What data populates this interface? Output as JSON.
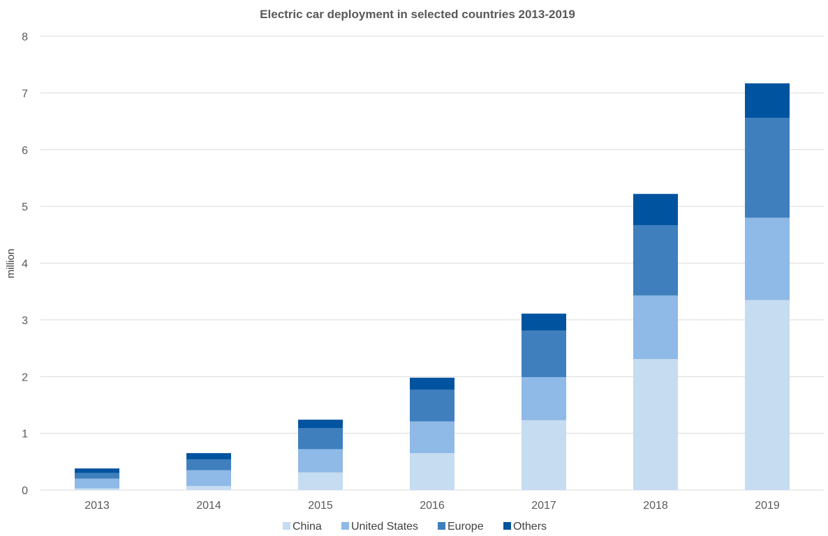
{
  "chart_data": {
    "type": "bar",
    "stacked": true,
    "title": "Electric car deployment in selected countries 2013-2019",
    "xlabel": "",
    "ylabel": "million",
    "ylim": [
      0,
      8
    ],
    "yticks": [
      "0",
      "1",
      "2",
      "3",
      "4",
      "5",
      "6",
      "7",
      "8"
    ],
    "grid": true,
    "legend_position": "bottom",
    "categories": [
      "2013",
      "2014",
      "2015",
      "2016",
      "2017",
      "2018",
      "2019"
    ],
    "series": [
      {
        "name": "China",
        "color": "#c5dcf1",
        "values": [
          0.03,
          0.07,
          0.31,
          0.65,
          1.23,
          2.31,
          3.35
        ]
      },
      {
        "name": "United States",
        "color": "#8fb9e6",
        "values": [
          0.17,
          0.28,
          0.41,
          0.56,
          0.76,
          1.12,
          1.45
        ]
      },
      {
        "name": "Europe",
        "color": "#3f7fbd",
        "values": [
          0.1,
          0.19,
          0.37,
          0.56,
          0.82,
          1.24,
          1.76
        ]
      },
      {
        "name": "Others",
        "color": "#00539f",
        "values": [
          0.08,
          0.11,
          0.15,
          0.21,
          0.3,
          0.55,
          0.61
        ]
      }
    ]
  }
}
